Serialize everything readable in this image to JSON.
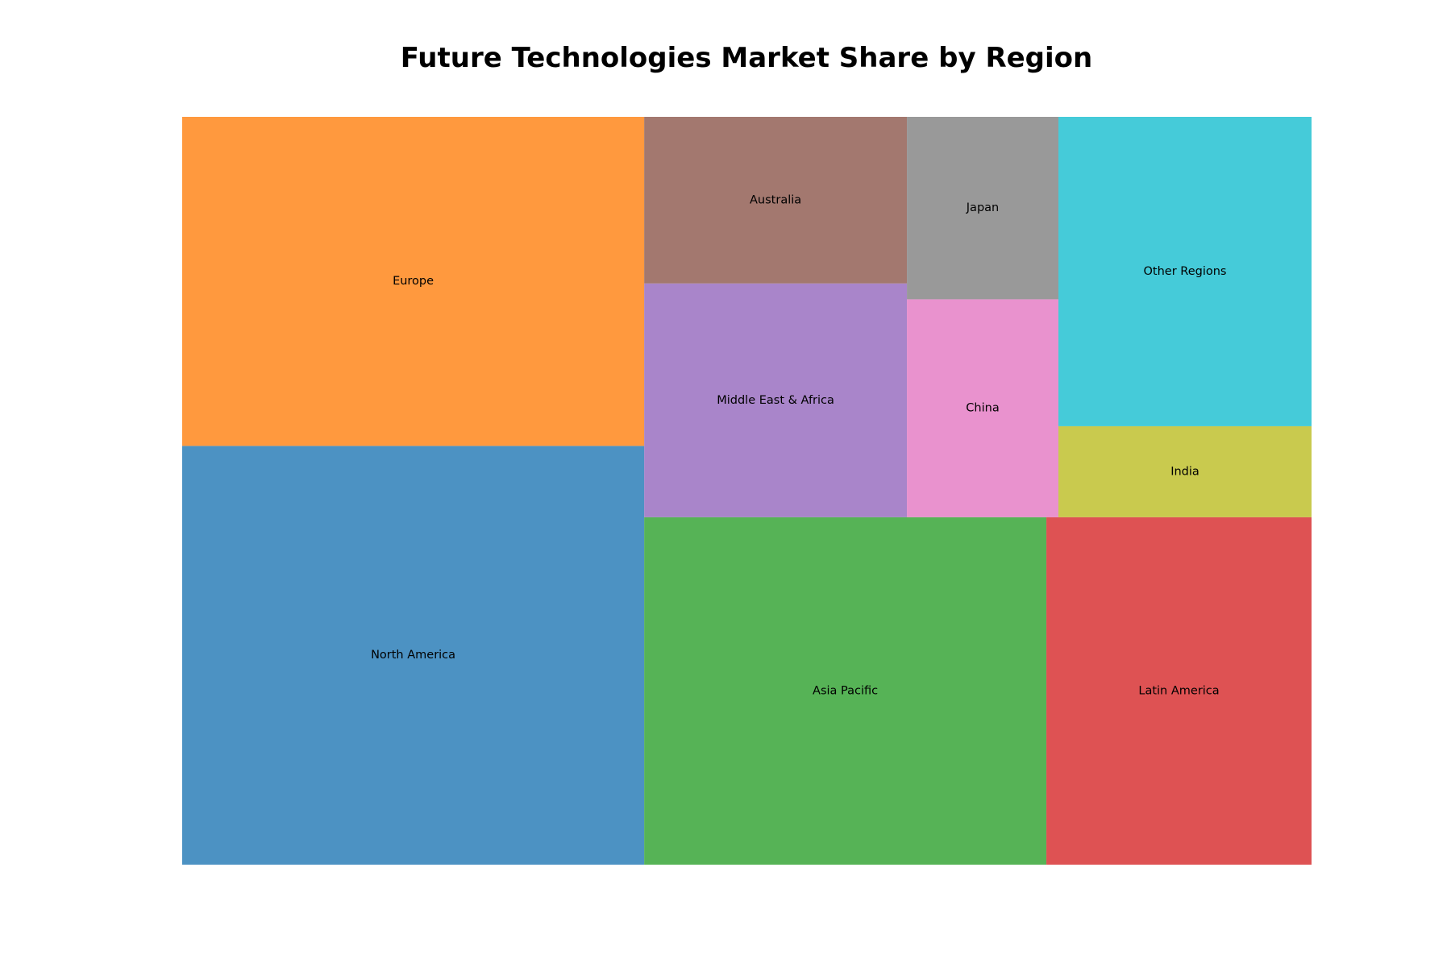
{
  "chart_data": {
    "type": "treemap",
    "title": "Future Technologies Market Share by Region",
    "opacity": 0.8,
    "items": [
      {
        "label": "North America",
        "value": 25.2,
        "color": "#1f77b4"
      },
      {
        "label": "Europe",
        "value": 19.8,
        "color": "#ff7f0e"
      },
      {
        "label": "Asia Pacific",
        "value": 18.2,
        "color": "#2ca02c"
      },
      {
        "label": "Latin America",
        "value": 12.0,
        "color": "#d62728"
      },
      {
        "label": "Middle East & Africa",
        "value": 8.0,
        "color": "#9467bd"
      },
      {
        "label": "Australia",
        "value": 5.7,
        "color": "#8c564b"
      },
      {
        "label": "China",
        "value": 4.3,
        "color": "#e377c2"
      },
      {
        "label": "Japan",
        "value": 3.6,
        "color": "#7f7f7f"
      },
      {
        "label": "India",
        "value": 3.0,
        "color": "#bcbd22"
      },
      {
        "label": "Other Regions",
        "value": 10.2,
        "color": "#17becf"
      }
    ]
  }
}
